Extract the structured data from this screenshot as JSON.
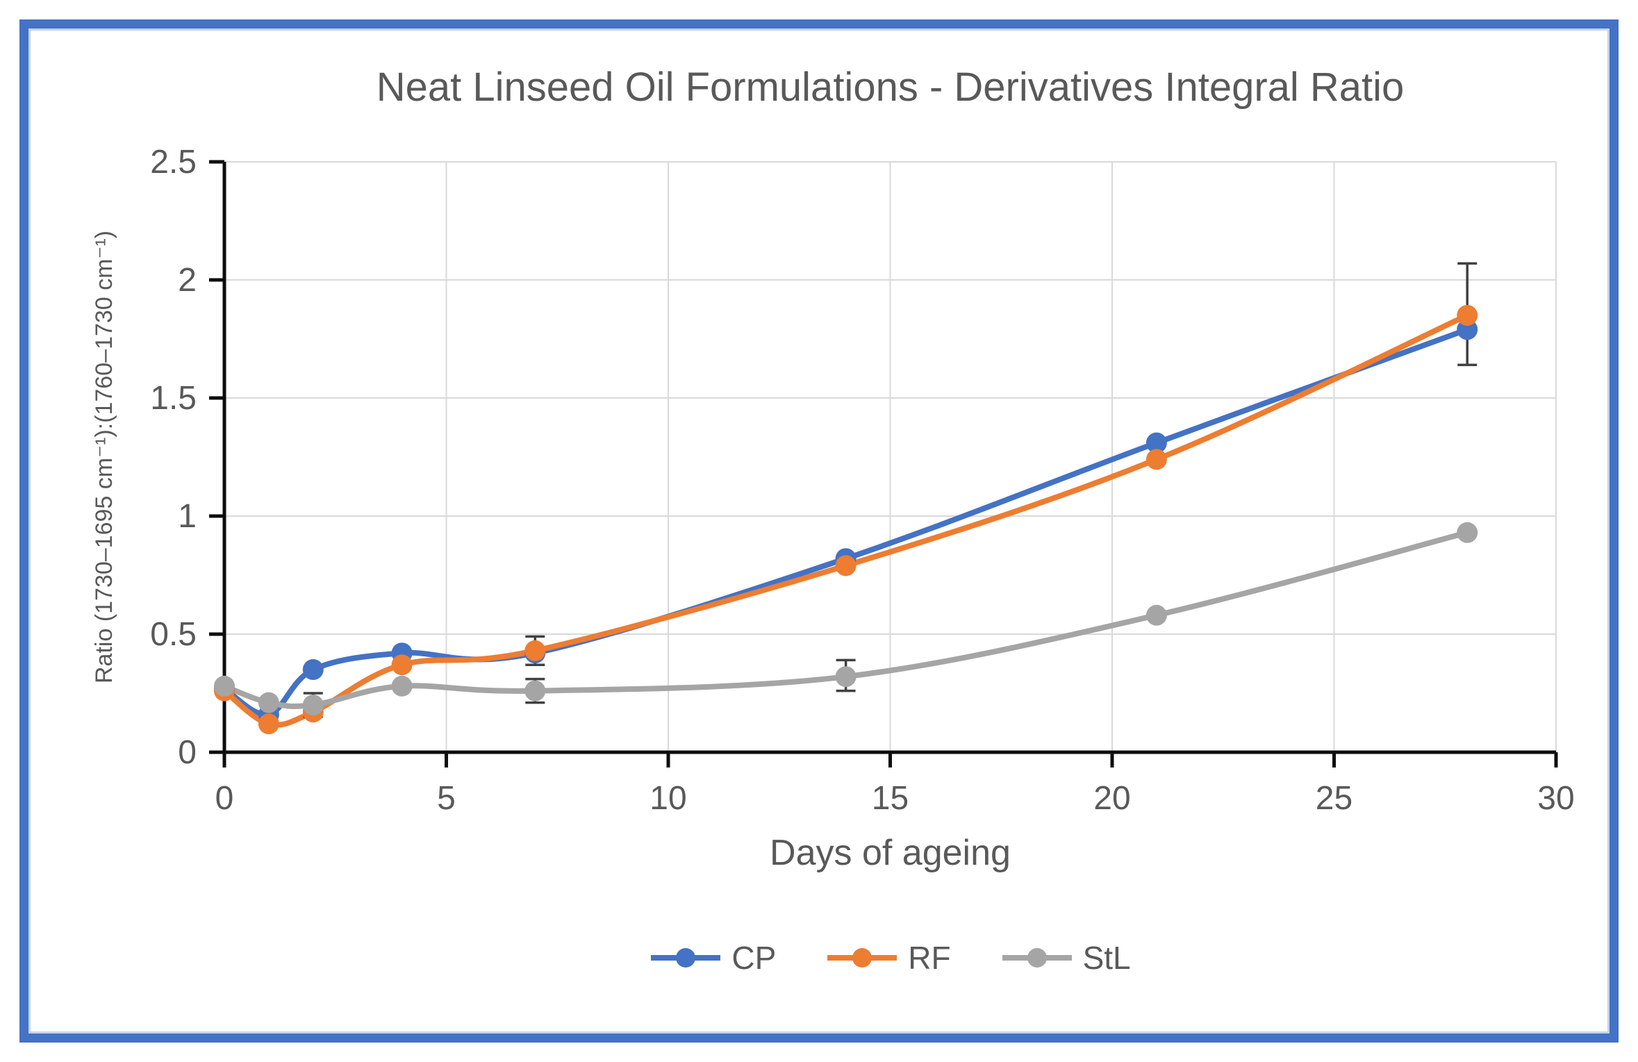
{
  "frame": {
    "border_color": "#4472C4",
    "background": "#FFFFFF"
  },
  "chart_data": {
    "type": "line",
    "title": "Neat Linseed Oil Formulations - Derivatives Integral Ratio",
    "xlabel": "Days of ageing",
    "ylabel": "Ratio (1730–1695 cm⁻¹):(1760–1730 cm⁻¹)",
    "x": [
      0,
      1,
      2,
      4,
      7,
      14,
      21,
      28
    ],
    "series": [
      {
        "name": "CP",
        "color": "#4472C4",
        "values": [
          0.27,
          0.16,
          0.35,
          0.42,
          0.42,
          0.82,
          1.31,
          1.79
        ]
      },
      {
        "name": "RF",
        "color": "#ED7D31",
        "values": [
          0.26,
          0.12,
          0.17,
          0.37,
          0.43,
          0.79,
          1.24,
          1.85
        ]
      },
      {
        "name": "StL",
        "color": "#A5A5A5",
        "values": [
          0.28,
          0.21,
          0.2,
          0.28,
          0.26,
          0.32,
          0.58,
          0.93
        ]
      }
    ],
    "error_bars": [
      {
        "series": "StL",
        "day": 2,
        "minus": 0.05,
        "plus": 0.05
      },
      {
        "series": "RF",
        "day": 7,
        "minus": 0.06,
        "plus": 0.06
      },
      {
        "series": "StL",
        "day": 7,
        "minus": 0.05,
        "plus": 0.05
      },
      {
        "series": "StL",
        "day": 14,
        "minus": 0.06,
        "plus": 0.07
      },
      {
        "series": "RF",
        "day": 28,
        "minus": 0.21,
        "plus": 0.22
      }
    ],
    "xlim": [
      0,
      30
    ],
    "ylim": [
      0,
      2.5
    ],
    "x_ticks": [
      0,
      5,
      10,
      15,
      20,
      25,
      30
    ],
    "x_tick_labels": [
      "0",
      "5",
      "10",
      "15",
      "20",
      "25",
      "30"
    ],
    "y_ticks": [
      0,
      0.5,
      1,
      1.5,
      2,
      2.5
    ],
    "y_tick_labels": [
      "0",
      "0.5",
      "1",
      "1.5",
      "2",
      "2.5"
    ],
    "grid": true,
    "legend_position": "bottom",
    "line_style": "smooth",
    "marker": "circle",
    "colors": {
      "gridline": "#D9D9D9",
      "axis": "#0d0d0d",
      "text": "#595959",
      "error_bar": "#404040"
    }
  }
}
